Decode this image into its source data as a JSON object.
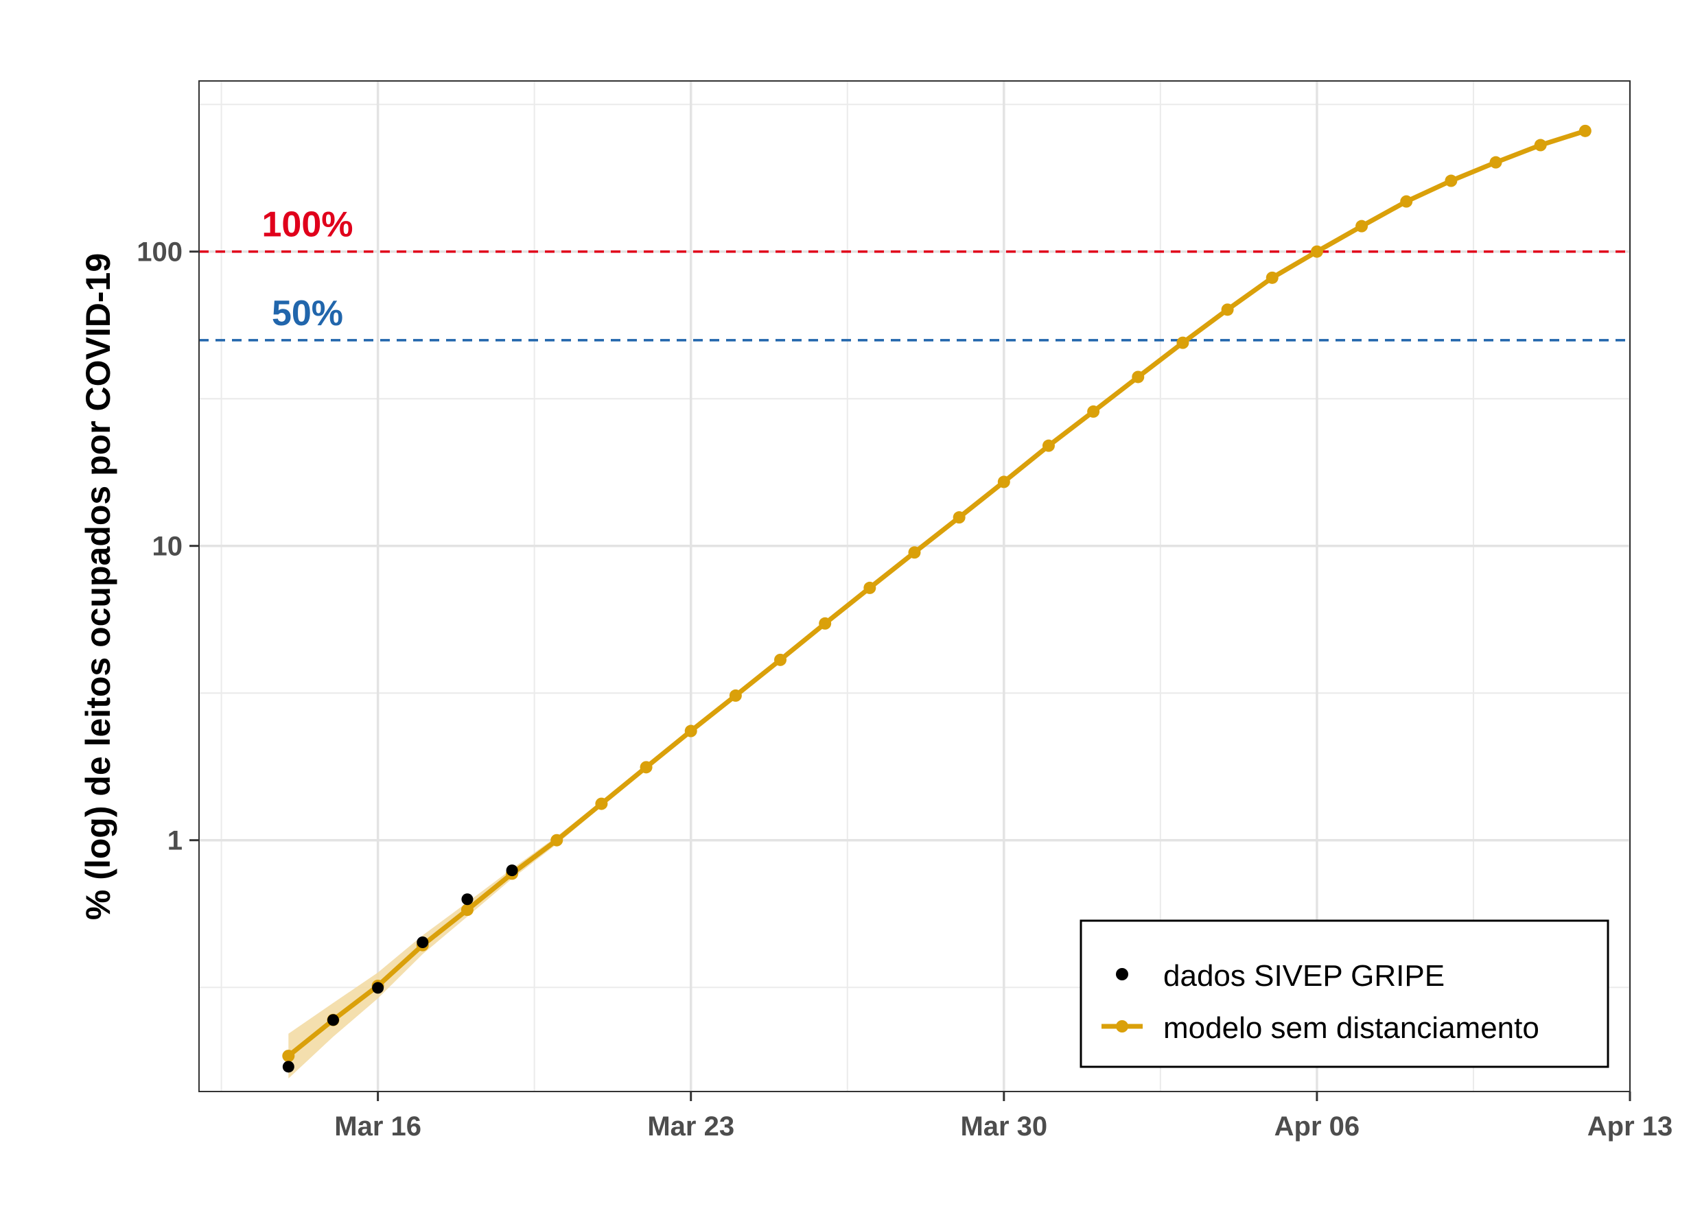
{
  "chart_data": {
    "type": "line",
    "title": "",
    "xlabel": "",
    "ylabel": "% (log) de leitos ocupados por COVID-19",
    "x_ticks": [
      "Mar 16",
      "Mar 23",
      "Mar 30",
      "Apr 06",
      "Apr 13"
    ],
    "y_ticks": [
      "1",
      "10",
      "100"
    ],
    "y_scale": "log",
    "xlim": [
      "2020-03-12",
      "2020-04-13"
    ],
    "ylim": [
      0.14,
      380
    ],
    "grid": true,
    "legend_position": "bottom-right",
    "reference_lines": [
      {
        "label": "100%",
        "y": 100,
        "color": "#e0001b",
        "style": "dashed"
      },
      {
        "label": "50%",
        "y": 50,
        "color": "#2166ac",
        "style": "dashed"
      }
    ],
    "series": [
      {
        "name": "dados SIVEP GRIPE",
        "kind": "points",
        "color": "#000000",
        "x": [
          "2020-03-14",
          "2020-03-15",
          "2020-03-16",
          "2020-03-17",
          "2020-03-18",
          "2020-03-19"
        ],
        "y": [
          0.17,
          0.245,
          0.315,
          0.45,
          0.63,
          0.79
        ]
      },
      {
        "name": "modelo sem distanciamento",
        "kind": "line+points",
        "color": "#daa00a",
        "band_color": "#f2d9a0",
        "x": [
          "2020-03-14",
          "2020-03-15",
          "2020-03-16",
          "2020-03-17",
          "2020-03-18",
          "2020-03-19",
          "2020-03-20",
          "2020-03-21",
          "2020-03-22",
          "2020-03-23",
          "2020-03-24",
          "2020-03-25",
          "2020-03-26",
          "2020-03-27",
          "2020-03-28",
          "2020-03-29",
          "2020-03-30",
          "2020-03-31",
          "2020-04-01",
          "2020-04-02",
          "2020-04-03",
          "2020-04-04",
          "2020-04-05",
          "2020-04-06",
          "2020-04-07",
          "2020-04-08",
          "2020-04-09",
          "2020-04-10",
          "2020-04-11",
          "2020-04-12"
        ],
        "y": [
          0.185,
          0.245,
          0.32,
          0.44,
          0.58,
          0.77,
          1.0,
          1.33,
          1.77,
          2.35,
          3.1,
          4.1,
          5.45,
          7.2,
          9.5,
          12.5,
          16.5,
          21.9,
          28.6,
          37.5,
          49.0,
          63.5,
          81.5,
          100.0,
          122.0,
          148.0,
          174.0,
          201.0,
          230.0,
          257.0
        ],
        "band_lower": [
          0.155,
          0.215,
          0.29,
          0.41,
          0.55,
          0.74,
          0.97,
          1.3,
          1.74,
          2.32,
          3.07,
          4.07,
          5.42,
          7.17,
          9.47,
          12.47,
          16.47,
          21.87,
          28.57,
          37.47,
          48.97,
          63.47,
          81.47,
          99.97,
          121.97,
          147.97,
          173.97,
          200.97,
          229.97,
          256.97
        ],
        "band_upper": [
          0.22,
          0.28,
          0.355,
          0.475,
          0.615,
          0.8,
          1.03,
          1.36,
          1.8,
          2.38,
          3.13,
          4.13,
          5.48,
          7.23,
          9.53,
          12.53,
          16.53,
          21.93,
          28.63,
          37.53,
          49.03,
          63.53,
          81.53,
          100.03,
          122.03,
          148.03,
          174.03,
          201.03,
          230.03,
          257.03
        ]
      }
    ],
    "legend": {
      "entries": [
        "dados SIVEP GRIPE",
        "modelo sem distanciamento"
      ]
    }
  }
}
